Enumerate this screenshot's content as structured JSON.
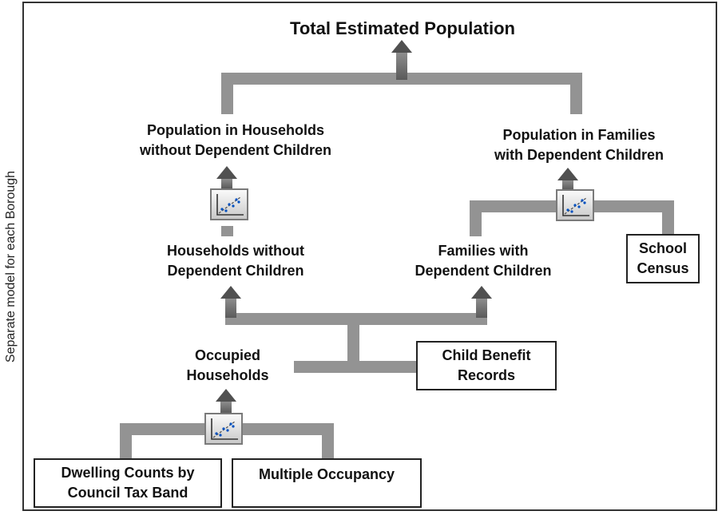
{
  "side_label": "Separate model for each Borough",
  "nodes": {
    "total": "Total Estimated Population",
    "pop_households_line1": "Population in Households",
    "pop_households_line2": "without Dependent Children",
    "pop_families_line1": "Population in Families",
    "pop_families_line2": "with Dependent Children",
    "households_line1": "Households without",
    "households_line2": "Dependent Children",
    "families_line1": "Families with",
    "families_line2": "Dependent Children",
    "occupied_line1": "Occupied",
    "occupied_line2": "Households"
  },
  "sources": {
    "school_line1": "School",
    "school_line2": "Census",
    "child_benefit_line1": "Child Benefit",
    "child_benefit_line2": "Records",
    "dwelling_line1": "Dwelling Counts by",
    "dwelling_line2": "Council Tax Band",
    "multiple_occupancy": "Multiple Occupancy"
  },
  "model_icon": "scatter-plot-model-icon",
  "colors": {
    "connector": "#939393",
    "arrow": "#5a5a5a"
  }
}
